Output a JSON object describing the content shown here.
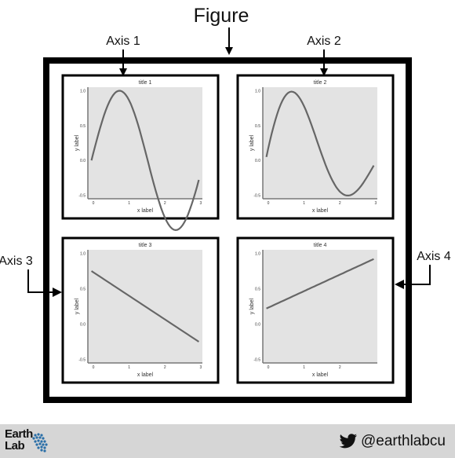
{
  "figure": {
    "label": "Figure"
  },
  "axis_labels": [
    "Axis 1",
    "Axis 2",
    "Axis 3",
    "Axis 4"
  ],
  "panels": [
    {
      "title": "title 1",
      "xlabel": "x label",
      "ylabel": "y label",
      "xticks": [
        "0",
        "1",
        "2",
        "3"
      ],
      "yticks": [
        "-0.5",
        "0.0",
        "0.5",
        "1.0"
      ],
      "xlim": [
        -0.1,
        3.1
      ],
      "ylim": [
        -0.55,
        1.05
      ],
      "curve": "sin(2x)",
      "x": [
        0,
        3
      ]
    },
    {
      "title": "title 2",
      "xlabel": "x label",
      "ylabel": "y label",
      "xticks": [
        "0",
        "1",
        "2",
        "3"
      ],
      "yticks": [
        "-0.5",
        "0.0",
        "0.5",
        "1.0"
      ],
      "xlim": [
        -0.1,
        3.1
      ],
      "ylim": [
        -0.55,
        1.05
      ],
      "curve": "humped decay",
      "x": [
        0,
        3
      ]
    },
    {
      "title": "title 3",
      "xlabel": "x label",
      "ylabel": "y label",
      "xticks": [
        "0",
        "1",
        "2",
        "3"
      ],
      "yticks": [
        "-0.5",
        "0.0",
        "0.5",
        "1.0"
      ],
      "xlim": [
        -0.1,
        3.1
      ],
      "ylim": [
        -0.55,
        1.05
      ],
      "curve": "line",
      "x": [
        0,
        3
      ],
      "y": [
        0.75,
        -0.25
      ]
    },
    {
      "title": "title 4",
      "xlabel": "x label",
      "ylabel": "y label",
      "xticks": [
        "0",
        "1",
        "2"
      ],
      "yticks": [
        "-0.5",
        "0.0",
        "0.5",
        "1.0"
      ],
      "xlim": [
        -0.1,
        3.1
      ],
      "ylim": [
        -0.55,
        1.05
      ],
      "curve": "line",
      "x": [
        0,
        3
      ],
      "y": [
        0.22,
        0.92
      ]
    }
  ],
  "footer": {
    "logo_line1": "Earth",
    "logo_line2": "Lab",
    "twitter_handle": "@earthlabcu",
    "twitter_icon": "twitter-bird-icon"
  },
  "colors": {
    "frame": "#000000",
    "plot_bg": "#e3e3e3",
    "curve": "#666666",
    "footer_bg": "#d6d6d6",
    "logo_dots": "#2a6fa8"
  }
}
